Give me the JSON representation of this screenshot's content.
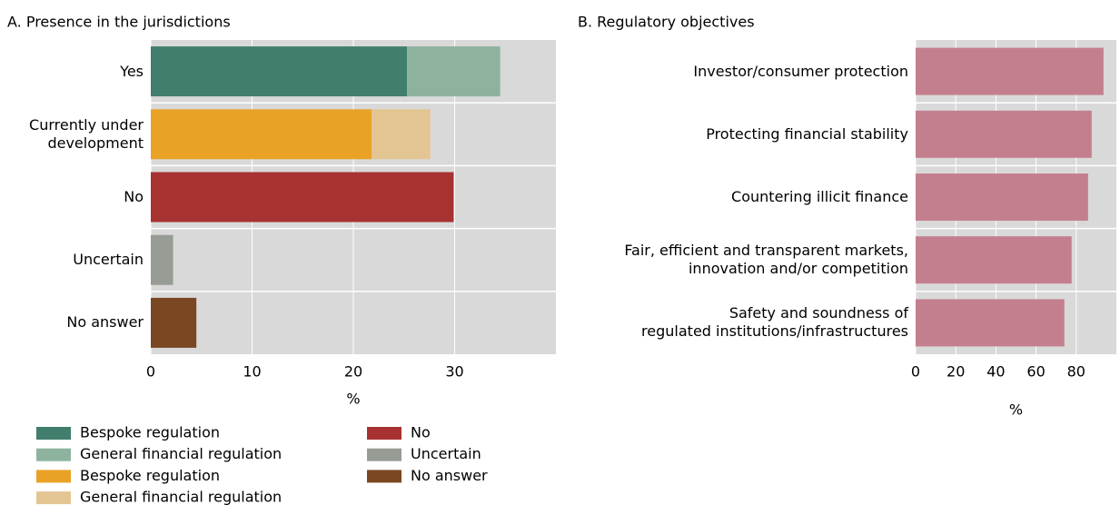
{
  "chart_data": [
    {
      "type": "bar",
      "orientation": "horizontal",
      "stacked": true,
      "title": "A. Presence in the jurisdictions",
      "categories": [
        "Yes",
        "Currently under development",
        "No",
        "Uncertain",
        "No answer"
      ],
      "series": [
        {
          "name": "Bespoke regulation",
          "color": "#417e6d",
          "values": [
            25.3,
            null,
            null,
            null,
            null
          ]
        },
        {
          "name": "General financial regulation",
          "color": "#8db39e",
          "values": [
            9.2,
            null,
            null,
            null,
            null
          ]
        },
        {
          "name": "Bespoke regulation",
          "color": "#e9a226",
          "values": [
            null,
            21.8,
            null,
            null,
            null
          ]
        },
        {
          "name": "General financial regulation",
          "color": "#e3c594",
          "values": [
            null,
            5.8,
            null,
            null,
            null
          ]
        },
        {
          "name": "No",
          "color": "#a83232",
          "values": [
            null,
            null,
            29.9,
            null,
            null
          ]
        },
        {
          "name": "Uncertain",
          "color": "#979c94",
          "values": [
            null,
            null,
            null,
            2.2,
            null
          ]
        },
        {
          "name": "No answer",
          "color": "#7a4722",
          "values": [
            null,
            null,
            null,
            null,
            4.5
          ]
        }
      ],
      "xlim": [
        0,
        40
      ],
      "xticks": [
        0,
        10,
        20,
        30
      ],
      "x_label": "%",
      "grid": true,
      "legend": "bottom"
    },
    {
      "type": "bar",
      "orientation": "horizontal",
      "stacked": false,
      "title": "B. Regulatory objectives",
      "categories": [
        "Investor/consumer protection",
        "Protecting financial stability",
        "Countering illicit finance",
        "Fair, efficient and transparent markets,\ninnovation and/or competition",
        "Safety and soundness of\nregulated institutions/infrastructures"
      ],
      "values": [
        93.6,
        87.7,
        85.9,
        77.7,
        74.1
      ],
      "color": "#c47f8e",
      "xlim": [
        0,
        100
      ],
      "xticks": [
        0,
        20,
        40,
        60,
        80
      ],
      "x_label": "%",
      "grid": true
    }
  ]
}
